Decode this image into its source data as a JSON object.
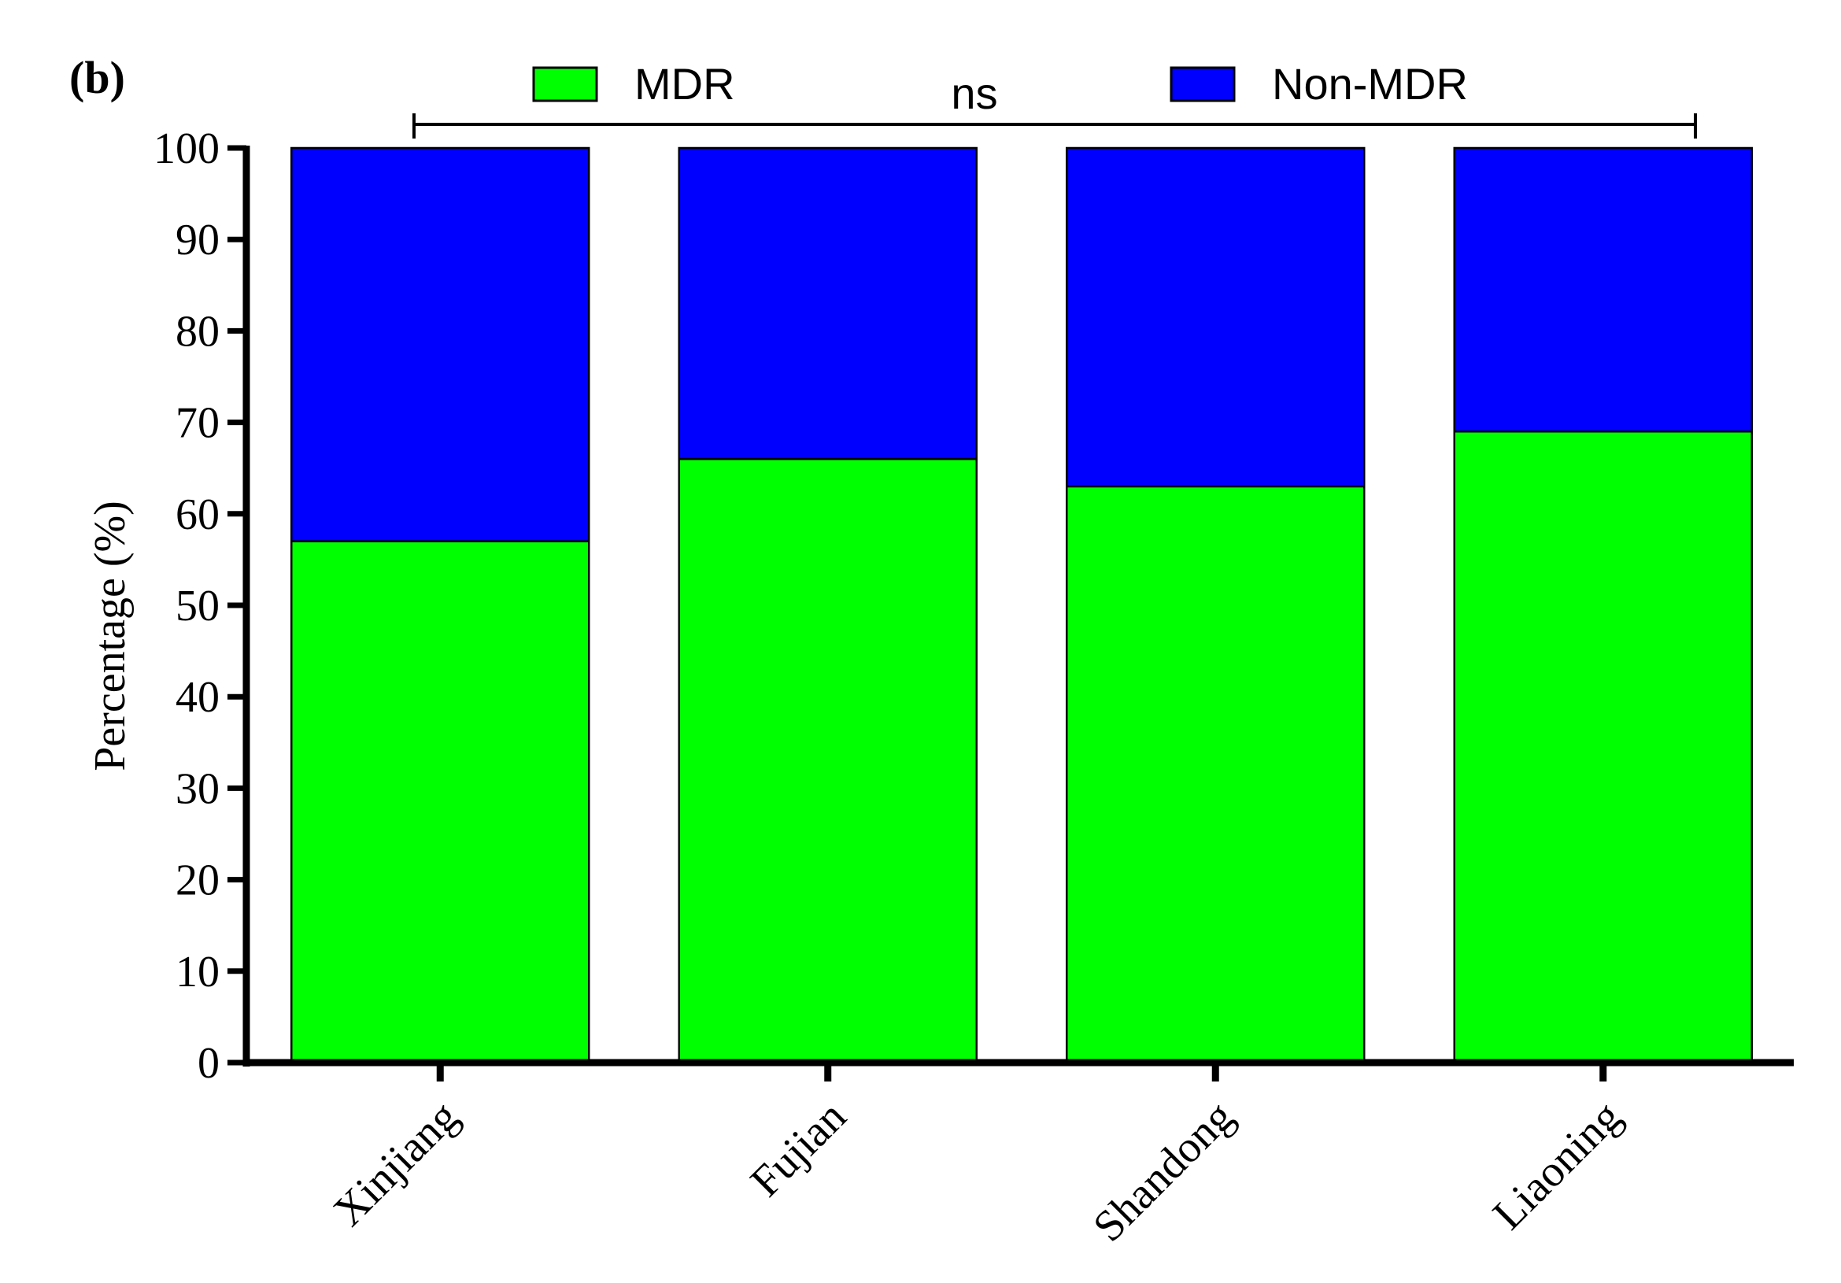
{
  "panel_label": "(b)",
  "chart_data": {
    "type": "bar",
    "stacked": true,
    "categories": [
      "Xinjiang",
      "Fujian",
      "Shandong",
      "Liaoning"
    ],
    "series": [
      {
        "name": "MDR",
        "color": "#00ff00",
        "values": [
          57,
          66,
          63,
          69
        ]
      },
      {
        "name": "Non-MDR",
        "color": "#0000ff",
        "values": [
          43,
          34,
          37,
          31
        ]
      }
    ],
    "ylabel": "Percentage (%)",
    "xlabel": "",
    "ylim": [
      0,
      100
    ],
    "yticks": [
      0,
      10,
      20,
      30,
      40,
      50,
      60,
      70,
      80,
      90,
      100
    ],
    "grid": false,
    "legend_position": "top",
    "annotation": {
      "text": "ns",
      "from_category": "Xinjiang",
      "to_category": "Liaoning"
    }
  }
}
